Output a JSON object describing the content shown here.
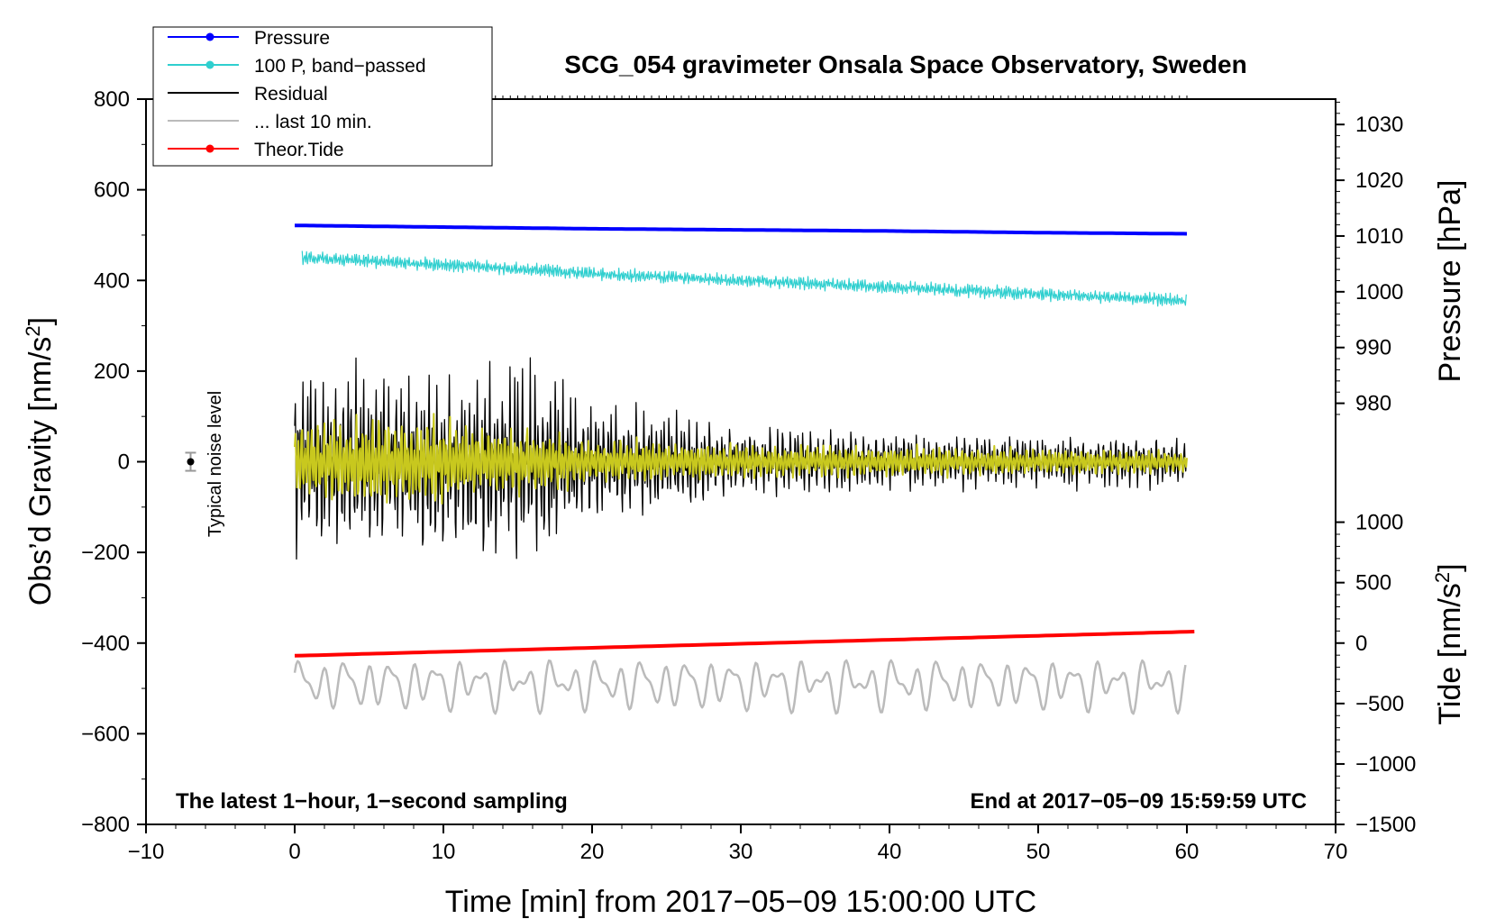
{
  "chart_data": {
    "type": "line",
    "title": "SCG_054 gravimeter Onsala Space Observatory, Sweden",
    "xlabel": "Time [min] from 2017−05−09 15:00:00 UTC",
    "ylabel_left": "Obs’d Gravity [nm/s",
    "ylabel_left_sup": "2",
    "ylabel_left_close": "]",
    "ylabel_right_pressure": "Pressure [hPa]",
    "ylabel_right_tide": "Tide [nm/s",
    "ylabel_right_tide_sup": "2",
    "ylabel_right_tide_close": "]",
    "xlim": [
      -10,
      70
    ],
    "ylim_left": [
      -800,
      800
    ],
    "x_ticks": [
      -10,
      0,
      10,
      20,
      30,
      40,
      50,
      60,
      70
    ],
    "x_tick_labels": [
      "−10",
      "0",
      "10",
      "20",
      "30",
      "40",
      "50",
      "60",
      "70"
    ],
    "y_ticks_left": [
      800,
      600,
      400,
      200,
      0,
      -200,
      -400,
      -600,
      -800
    ],
    "y_tick_labels_left": [
      "800",
      "600",
      "400",
      "200",
      "0",
      "−200",
      "−400",
      "−600",
      "−800"
    ],
    "pressure_axis": {
      "ticks": [
        1030,
        1020,
        1010,
        1000,
        990,
        980
      ],
      "tick_labels": [
        "1030",
        "1020",
        "1010",
        "1000",
        "990",
        "980"
      ],
      "gravity_at_1000": 375,
      "gravity_per_hpa": 12.3
    },
    "tide_axis": {
      "ticks": [
        1000,
        500,
        0,
        -500,
        -1000,
        -1500
      ],
      "tick_labels": [
        "1000",
        "500",
        "0",
        "−500",
        "−1000",
        "−1500"
      ],
      "gravity_at_0": -400,
      "gravity_per_unit": 0.2667
    },
    "notes": {
      "left": "The latest 1−hour, 1−second sampling",
      "right": "End at 2017−05−09 15:59:59 UTC",
      "noise": "Typical noise level"
    },
    "noise_bar": {
      "x": -7,
      "y": 0,
      "err": 20
    },
    "legend": [
      {
        "label": "Pressure",
        "color": "#0000ff",
        "marker": true
      },
      {
        "label": "100 P, band−passed",
        "color": "#2fcfcf",
        "marker": true
      },
      {
        "label": "Residual",
        "color": "#000000",
        "marker": false
      },
      {
        "label": "... last 10 min.",
        "color": "#bbbbbb",
        "marker": false
      },
      {
        "label": "Theor.Tide",
        "color": "#ff0000",
        "marker": true
      }
    ],
    "series": [
      {
        "name": "Pressure",
        "axis": "pressure",
        "color": "#0000ff",
        "x": [
          0,
          10,
          20,
          30,
          40,
          50,
          60
        ],
        "values": [
          1011.9,
          1011.6,
          1011.3,
          1011.1,
          1010.9,
          1010.6,
          1010.4
        ]
      },
      {
        "name": "100 P, band−passed",
        "axis": "gravity",
        "color": "#2fcfcf",
        "x": [
          0,
          10,
          20,
          30,
          40,
          50,
          60
        ],
        "values": [
          450,
          435,
          415,
          400,
          385,
          370,
          355
        ],
        "noise_amplitude": 18
      },
      {
        "name": "Residual",
        "axis": "gravity",
        "color": "#000000",
        "x": [
          0,
          5,
          10,
          15,
          20,
          30,
          40,
          50,
          60
        ],
        "envelope": [
          230,
          230,
          210,
          260,
          150,
          90,
          70,
          65,
          60
        ],
        "center": 0
      },
      {
        "name": "Residual (filtered)",
        "axis": "gravity",
        "color": "#c8c81e",
        "x": [
          0,
          5,
          10,
          15,
          20,
          30,
          40,
          50,
          60
        ],
        "envelope": [
          110,
          120,
          110,
          90,
          60,
          45,
          40,
          35,
          30
        ],
        "center": 0
      },
      {
        "name": "... last 10 min.",
        "axis": "gravity",
        "color": "#bbbbbb",
        "x": [
          0,
          60
        ],
        "center": -490,
        "amplitude": 60
      },
      {
        "name": "Theor.Tide",
        "axis": "tide",
        "color": "#ff0000",
        "x": [
          0,
          60.5
        ],
        "values": [
          -105,
          95
        ]
      }
    ]
  }
}
